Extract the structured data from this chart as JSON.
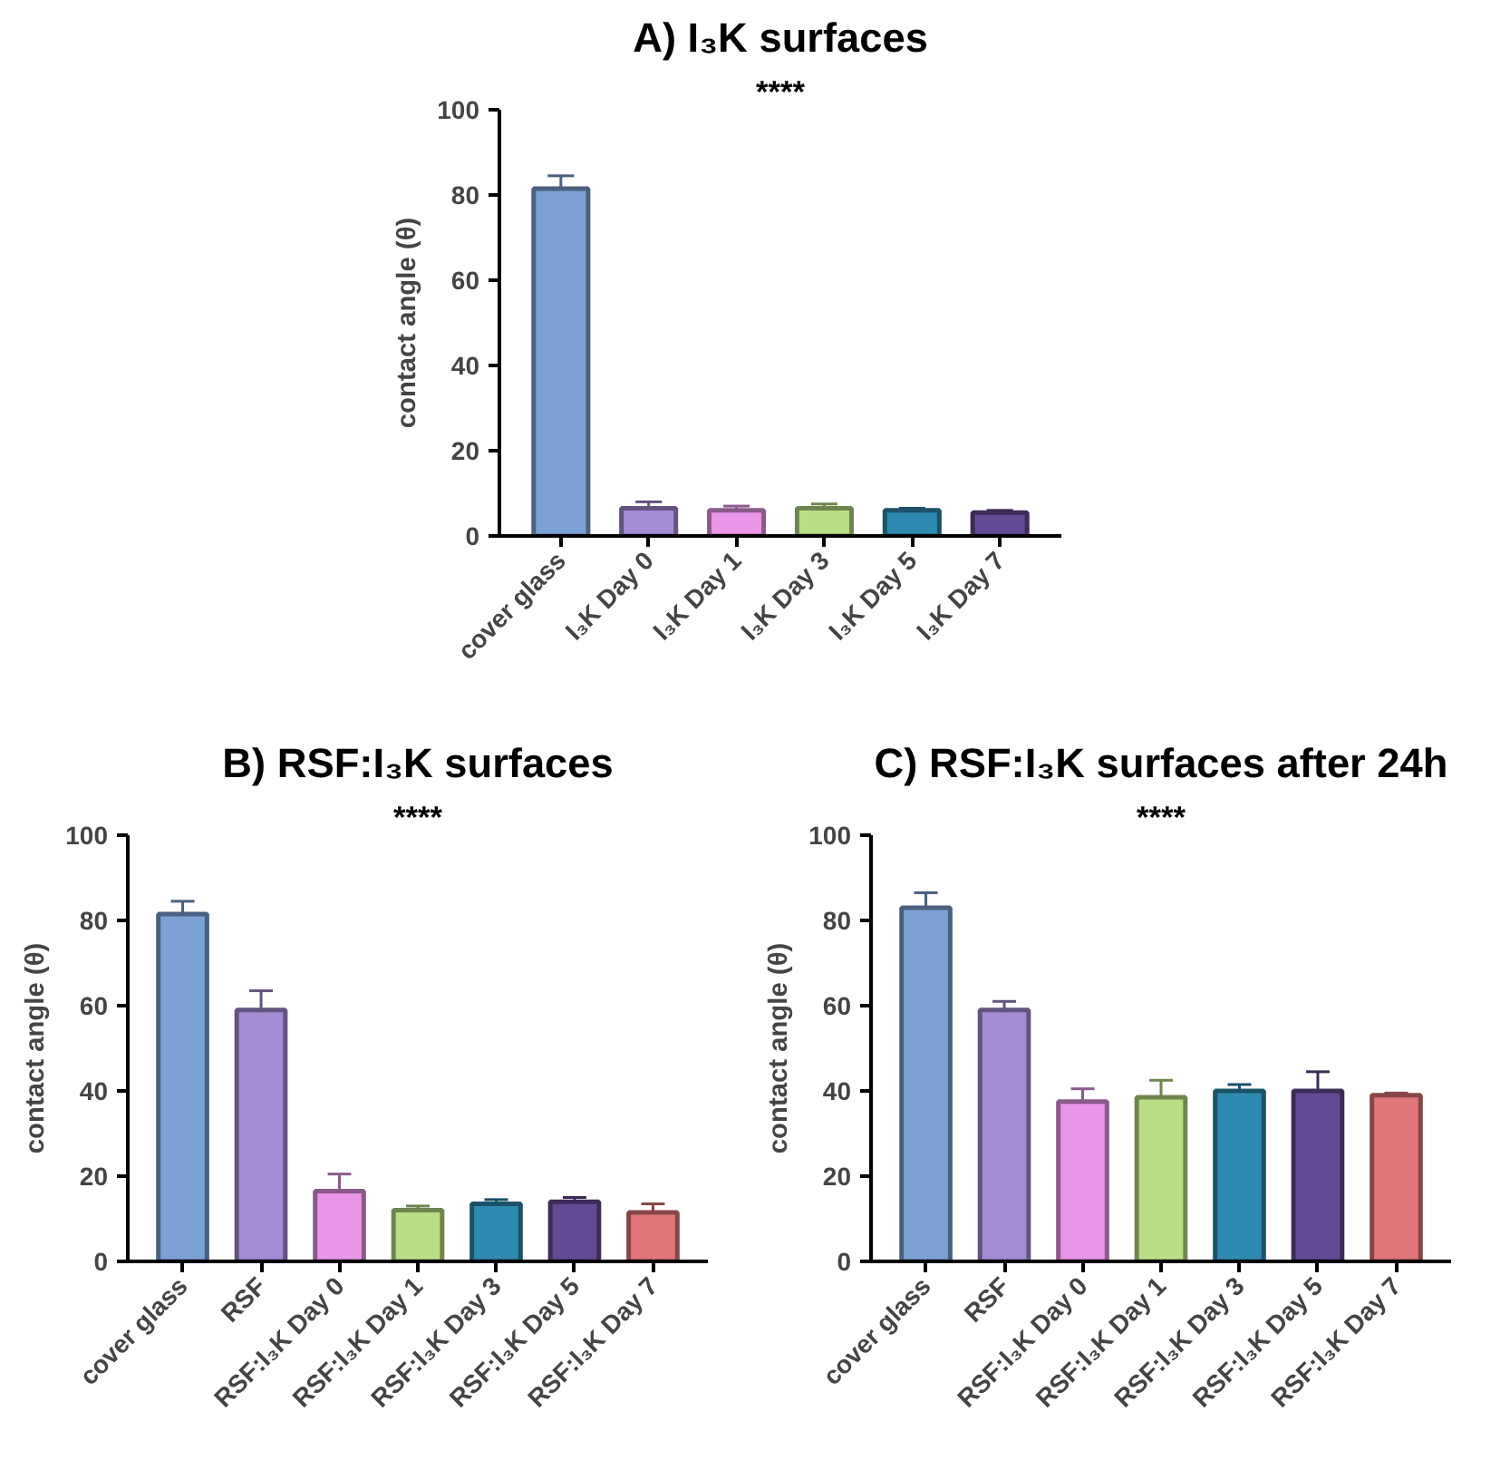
{
  "chart_data": [
    {
      "type": "bar",
      "title": "A) I₃K surfaces",
      "ylabel": "contact angle (θ)",
      "categories": [
        "cover glass",
        "I₃K Day 0",
        "I₃K Day 1",
        "I₃K Day 3",
        "I₃K Day 5",
        "I₃K Day 7"
      ],
      "values": [
        81.5,
        6.5,
        6,
        6.5,
        6,
        5.5
      ],
      "errors": [
        [
          81.5,
          84.5
        ],
        [
          6.5,
          8
        ],
        [
          6,
          7
        ],
        [
          6.5,
          7.5
        ],
        [
          6,
          6.5
        ],
        [
          5.5,
          6
        ]
      ],
      "colors": [
        "#7ba1d4",
        "#a48bd4",
        "#e995e8",
        "#bade85",
        "#2e8ab0",
        "#644a94"
      ],
      "ylim": [
        0,
        100
      ],
      "yticks": [
        0,
        20,
        40,
        60,
        80,
        100
      ],
      "grid": false,
      "annotations": [
        "****"
      ]
    },
    {
      "type": "bar",
      "title": "B) RSF:I₃K surfaces",
      "ylabel": "contact angle (θ)",
      "categories": [
        "cover glass",
        "RSF",
        "RSF:I₃K Day 0",
        "RSF:I₃K Day 1",
        "RSF:I₃K Day 3",
        "RSF:I₃K Day 5",
        "RSF:I₃K Day 7"
      ],
      "values": [
        81.5,
        59,
        16.5,
        12,
        13.5,
        14,
        11.5
      ],
      "errors": [
        [
          81.5,
          84.5
        ],
        [
          59,
          63.5
        ],
        [
          16.5,
          20.5
        ],
        [
          12,
          13
        ],
        [
          13.5,
          14.5
        ],
        [
          14,
          15
        ],
        [
          11.5,
          13.5
        ]
      ],
      "colors": [
        "#7ba1d4",
        "#a48bd4",
        "#e995e8",
        "#bade85",
        "#2e8ab0",
        "#644a94",
        "#e07678"
      ],
      "ylim": [
        0,
        100
      ],
      "yticks": [
        0,
        20,
        40,
        60,
        80,
        100
      ],
      "grid": false,
      "annotations": [
        "****"
      ]
    },
    {
      "type": "bar",
      "title": "C) RSF:I₃K surfaces after 24h",
      "ylabel": "contact angle (θ)",
      "categories": [
        "cover glass",
        "RSF",
        "RSF:I₃K Day 0",
        "RSF:I₃K Day 1",
        "RSF:I₃K Day 3",
        "RSF:I₃K Day 5",
        "RSF:I₃K Day 7"
      ],
      "values": [
        83,
        59,
        37.5,
        38.5,
        40,
        40,
        39
      ],
      "errors": [
        [
          83,
          86.5
        ],
        [
          59,
          61
        ],
        [
          37.5,
          40.5
        ],
        [
          38.5,
          42.5
        ],
        [
          40,
          41.5
        ],
        [
          40,
          44.5
        ],
        [
          39,
          39.5
        ]
      ],
      "colors": [
        "#7ba1d4",
        "#a48bd4",
        "#e995e8",
        "#bade85",
        "#2e8ab0",
        "#644a94",
        "#e07678"
      ],
      "ylim": [
        0,
        100
      ],
      "yticks": [
        0,
        20,
        40,
        60,
        80,
        100
      ],
      "grid": false,
      "annotations": [
        "****"
      ]
    }
  ]
}
